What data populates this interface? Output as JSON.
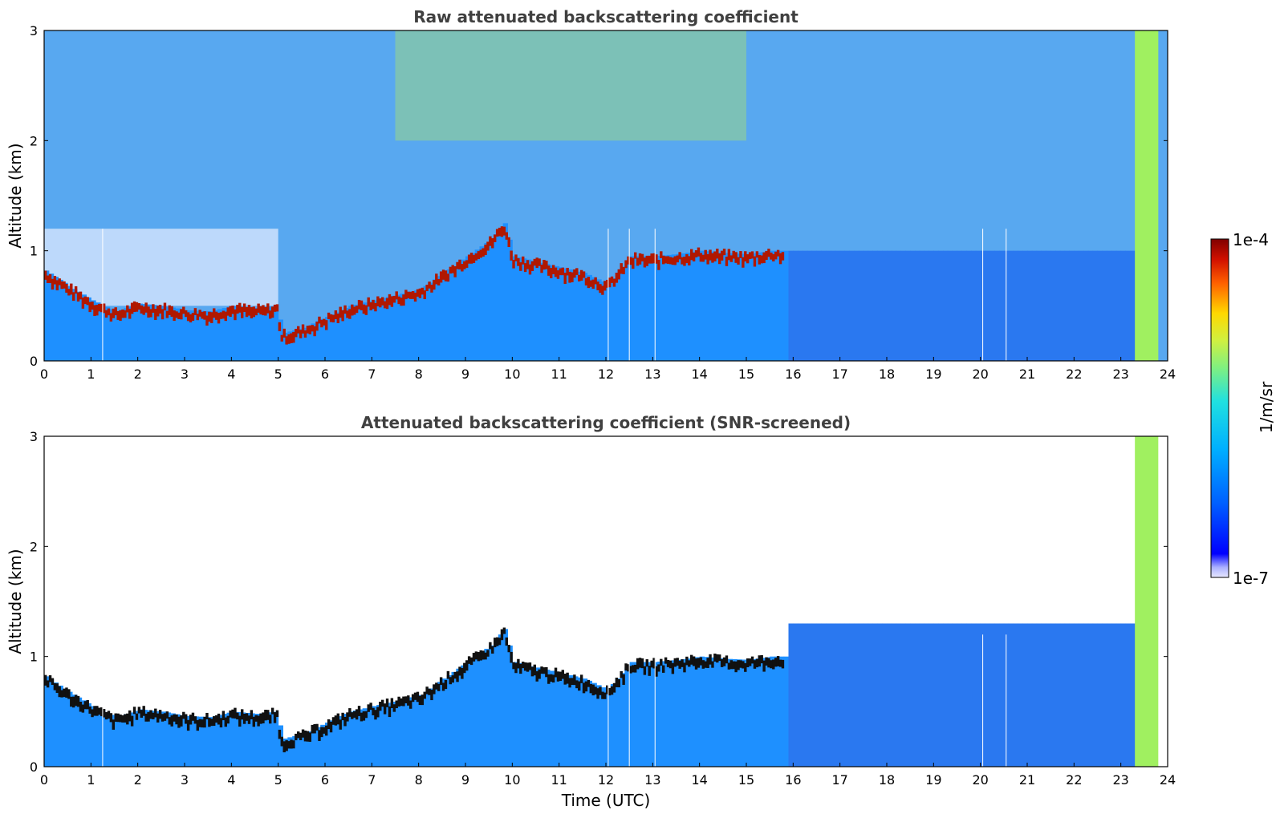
{
  "chart_data": [
    {
      "type": "heatmap",
      "title": "Raw attenuated backscattering coefficient",
      "xlabel": "",
      "ylabel": "Altitude (km)",
      "xlim": [
        0,
        24
      ],
      "ylim": [
        0,
        3
      ],
      "x_ticks": [
        "0",
        "1",
        "2",
        "3",
        "4",
        "5",
        "6",
        "7",
        "8",
        "9",
        "10",
        "11",
        "12",
        "13",
        "14",
        "15",
        "16",
        "17",
        "18",
        "19",
        "20",
        "21",
        "22",
        "23",
        "24"
      ],
      "y_ticks": [
        "0",
        "1",
        "2",
        "3"
      ],
      "screened": false,
      "layer_top_km": [
        [
          0,
          0.82
        ],
        [
          0.5,
          0.68
        ],
        [
          1,
          0.55
        ],
        [
          1.5,
          0.45
        ],
        [
          2,
          0.52
        ],
        [
          2.5,
          0.5
        ],
        [
          3,
          0.46
        ],
        [
          3.5,
          0.45
        ],
        [
          4,
          0.5
        ],
        [
          4.5,
          0.48
        ],
        [
          4.95,
          0.5
        ],
        [
          5.05,
          0.25
        ],
        [
          5.5,
          0.3
        ],
        [
          6,
          0.4
        ],
        [
          6.5,
          0.5
        ],
        [
          7,
          0.55
        ],
        [
          7.5,
          0.6
        ],
        [
          8,
          0.65
        ],
        [
          8.5,
          0.8
        ],
        [
          9,
          0.95
        ],
        [
          9.5,
          1.1
        ],
        [
          9.8,
          1.25
        ],
        [
          10,
          0.95
        ],
        [
          10.5,
          0.9
        ],
        [
          11,
          0.85
        ],
        [
          11.5,
          0.8
        ],
        [
          12,
          0.7
        ],
        [
          12.5,
          0.95
        ],
        [
          13,
          0.95
        ],
        [
          13.5,
          0.97
        ],
        [
          14,
          1.0
        ],
        [
          14.5,
          0.98
        ],
        [
          15,
          0.97
        ],
        [
          15.5,
          1.0
        ],
        [
          15.8,
          1.0
        ]
      ],
      "colorbar": {
        "label": "1/m/sr",
        "min": "1e-7",
        "max": "1e-4",
        "scale": "log"
      }
    },
    {
      "type": "heatmap",
      "title": "Attenuated backscattering coefficient (SNR-screened)",
      "xlabel": "Time (UTC)",
      "ylabel": "Altitude (km)",
      "xlim": [
        0,
        24
      ],
      "ylim": [
        0,
        3
      ],
      "x_ticks": [
        "0",
        "1",
        "2",
        "3",
        "4",
        "5",
        "6",
        "7",
        "8",
        "9",
        "10",
        "11",
        "12",
        "13",
        "14",
        "15",
        "16",
        "17",
        "18",
        "19",
        "20",
        "21",
        "22",
        "23",
        "24"
      ],
      "y_ticks": [
        "0",
        "1",
        "2",
        "3"
      ],
      "screened": true,
      "colorbar": {
        "label": "1/m/sr",
        "min": "1e-7",
        "max": "1e-4",
        "scale": "log"
      }
    }
  ],
  "colors": {
    "colormap": [
      "#0000ff",
      "#0066ff",
      "#00c8ff",
      "#58f0c0",
      "#c8f048",
      "#ffd000",
      "#ff6400",
      "#c01000",
      "#800000"
    ],
    "title": "#404040"
  }
}
